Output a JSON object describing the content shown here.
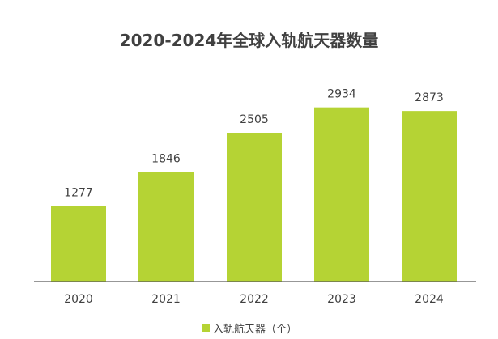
{
  "chart_data": {
    "type": "bar",
    "title": "2020-2024年全球入轨航天器数量",
    "categories": [
      "2020",
      "2021",
      "2022",
      "2023",
      "2024"
    ],
    "series": [
      {
        "name": "入轨航天器（个）",
        "values": [
          1277,
          1846,
          2505,
          2934,
          2873
        ]
      }
    ],
    "ylim": [
      0,
      3270
    ],
    "grid": false,
    "legend_position": "bottom",
    "colors": {
      "bar": "#b5d334"
    }
  }
}
